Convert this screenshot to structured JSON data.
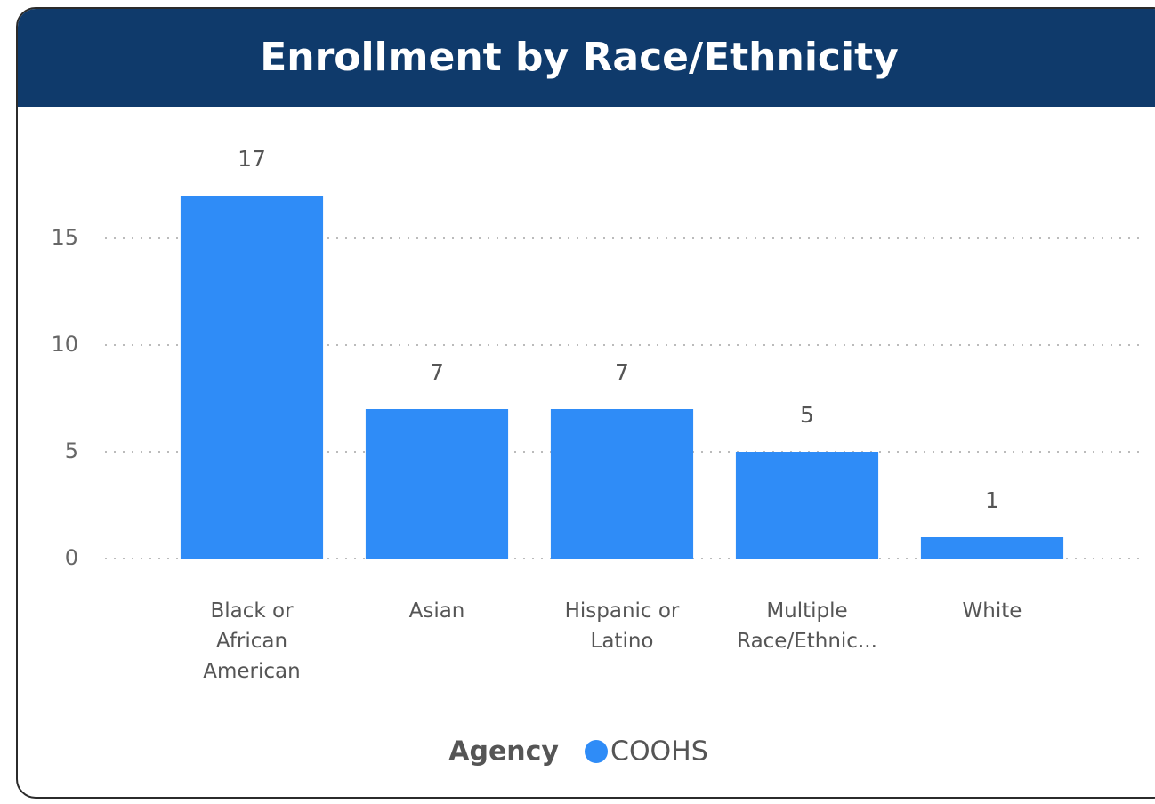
{
  "chart_data": {
    "type": "bar",
    "title": "Enrollment by Race/Ethnicity",
    "categories": [
      "Black or African American",
      "Asian",
      "Hispanic or Latino",
      "Multiple Race/Ethnic...",
      "White"
    ],
    "series": [
      {
        "name": "COOHS",
        "color": "#2f8cf7",
        "values": [
          17,
          7,
          7,
          5,
          1
        ]
      }
    ],
    "legend_title": "Agency",
    "ylim": [
      0,
      17.5
    ],
    "yticks": [
      0,
      5,
      10,
      15
    ],
    "grid": true
  }
}
